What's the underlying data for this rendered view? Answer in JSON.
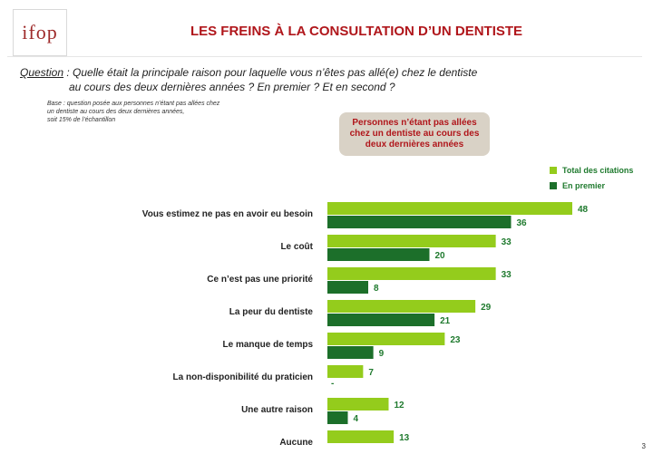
{
  "header": {
    "logo_text": "ifop",
    "title": "LES FREINS À LA CONSULTATION D’UN DENTISTE"
  },
  "question": {
    "label": "Question",
    "line1": " : Quelle était la principale raison pour laquelle vous n’êtes pas allé(e) chez le dentiste",
    "line2": "au cours des deux dernières années ? En premier ? Et en second ?"
  },
  "base": {
    "line1": "Base : question posée aux personnes n’étant pas allées chez",
    "line2": "un dentiste au cours des deux dernières années,",
    "line3": "soit 15% de l’échantillon"
  },
  "callout": "Personnes n’étant pas allées chez un dentiste au cours des deux dernières années",
  "legend": {
    "total": "Total des citations",
    "premier": "En premier"
  },
  "page_number": "3",
  "colors": {
    "total": "#94cc1c",
    "premier": "#1c6f2a",
    "title": "#b0161b",
    "value_text": "#1f7a2e"
  },
  "chart_data": {
    "type": "bar",
    "orientation": "horizontal",
    "categories": [
      "Vous estimez ne pas en avoir eu besoin",
      "Le coût",
      "Ce n’est pas une priorité",
      "La peur du dentiste",
      "Le manque de temps",
      "La non-disponibilité du praticien",
      "Une autre raison",
      "Aucune"
    ],
    "series": [
      {
        "name": "Total des citations",
        "values": [
          48,
          33,
          33,
          29,
          23,
          7,
          12,
          13
        ]
      },
      {
        "name": "En premier",
        "values": [
          36,
          20,
          8,
          21,
          9,
          null,
          4,
          null
        ]
      }
    ],
    "value_labels": [
      [
        "48",
        "33",
        "33",
        "29",
        "23",
        "7",
        "12",
        "13"
      ],
      [
        "36",
        "20",
        "8",
        "21",
        "9",
        "-",
        "4",
        ""
      ]
    ],
    "legend_position": "top-right",
    "grid": false
  }
}
